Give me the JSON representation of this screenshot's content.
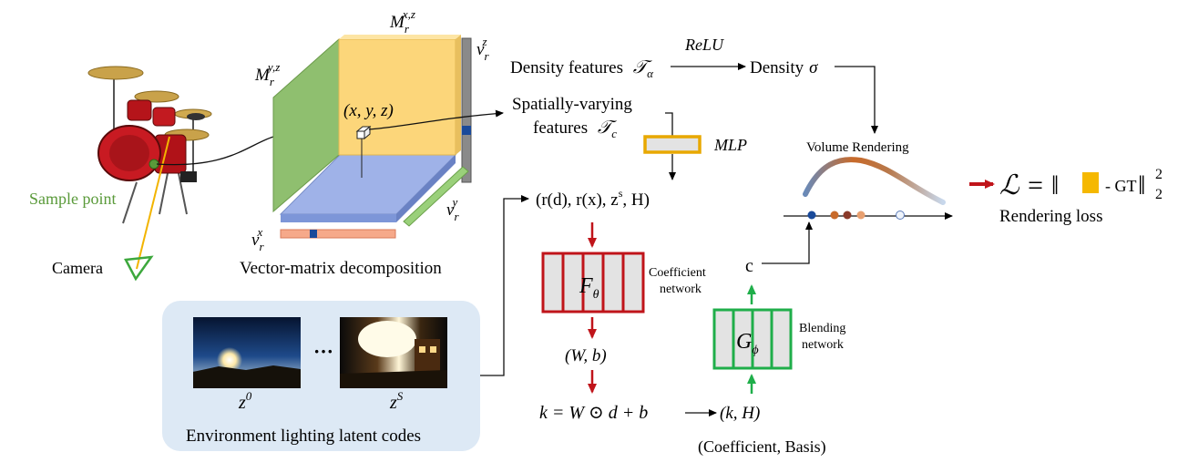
{
  "labels": {
    "sample_point": "Sample point",
    "camera": "Camera",
    "vm_decomp": "Vector-matrix decomposition",
    "env_codes": "Environment lighting latent codes",
    "density_features": "Density features",
    "density_sym": "𝒯",
    "density_sub": "α",
    "relu": "ReLU",
    "density": "Density",
    "sigma": "σ",
    "spatial_line1": "Spatially-varying",
    "spatial_line2": "features",
    "spatial_sym": "𝒯",
    "spatial_sub": "c",
    "mlp": "MLP",
    "xyz": "(x, y, z)",
    "input_vector": "(r(d), r(x), z",
    "input_vector_sup": "s",
    "input_vector_end": ", H)",
    "coef_net_line1": "Coefficient",
    "coef_net_line2": "network",
    "f_theta": "F",
    "f_theta_sub": "θ",
    "wb": "(W, b)",
    "k_formula": "k = W ⊙ d + b",
    "kH": "(k, H)",
    "coef_basis": "(Coefficient, Basis)",
    "blend_net_line1": "Blending",
    "blend_net_line2": "network",
    "g_phi": "G",
    "g_phi_sub": "ϕ",
    "c_label": "c",
    "volume_rendering": "Volume Rendering",
    "loss_formula_start": "ℒ = ‖",
    "loss_gt": "- GT",
    "loss_end": "‖",
    "loss_sup": "2",
    "loss_sub": "2",
    "rendering_loss": "Rendering loss",
    "z0": "z",
    "z0_sup": "0",
    "zs": "z",
    "zs_sup": "S",
    "ellipsis": "···",
    "m_xz": "M",
    "m_xz_sub": "r",
    "m_xz_sup": "x,z",
    "m_yz": "M",
    "m_yz_sub": "r",
    "m_yz_sup": "y,z",
    "v_z": "v",
    "v_z_sub": "r",
    "v_z_sup": "z",
    "v_y": "v",
    "v_y_sub": "r",
    "v_y_sup": "y",
    "v_x": "v",
    "v_x_sub": "r",
    "v_x_sup": "x"
  },
  "colors": {
    "sample_point": "#5a9a3a",
    "camera_green": "#3da83d",
    "camera_ray": "#f2b400",
    "matrix_xz": "#fcd67a",
    "matrix_yz": "#8fbf6f",
    "plane_xy": "#9fb2e8",
    "vector_z": "#888888",
    "vector_y": "#9ad07a",
    "vector_x": "#f6a98a",
    "mlp_orange": "#e8a800",
    "coef_red": "#c0141a",
    "blend_green": "#1fae4a",
    "env_panel": "#dde9f5",
    "loss_orange": "#f5b800",
    "arrow_red": "#c0141a"
  }
}
